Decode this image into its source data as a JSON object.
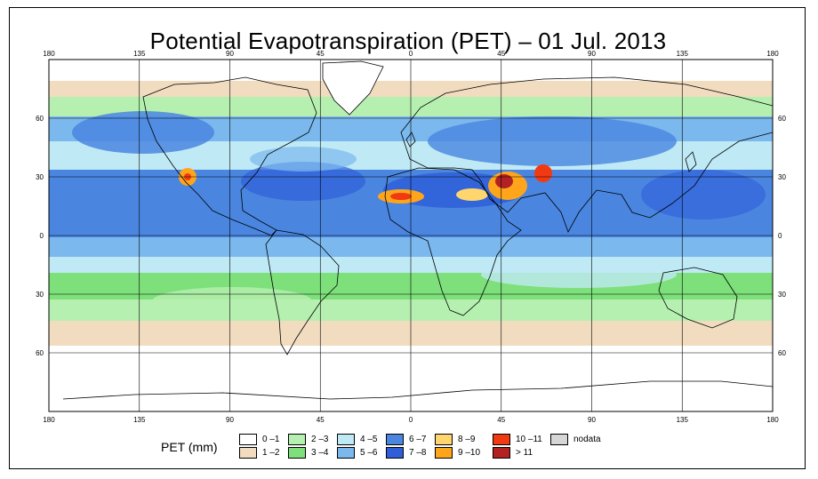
{
  "title": "Potential Evapotranspiration (PET) – 01 Jul. 2013",
  "axes": {
    "lon_labels": [
      "180",
      "135",
      "90",
      "45",
      "0",
      "45",
      "90",
      "135",
      "180"
    ],
    "lat_labels": [
      "60",
      "30",
      "0",
      "30",
      "60"
    ]
  },
  "legend": {
    "title": "PET (mm)",
    "items": [
      {
        "label": "0 –1",
        "color": "#ffffff"
      },
      {
        "label": "1 –2",
        "color": "#f1dcc0"
      },
      {
        "label": "2 –3",
        "color": "#b6f0b0"
      },
      {
        "label": "3 –4",
        "color": "#7de07a"
      },
      {
        "label": "4 –5",
        "color": "#bfeaf5"
      },
      {
        "label": "5 –6",
        "color": "#7ab8ee"
      },
      {
        "label": "6 –7",
        "color": "#4a86e0"
      },
      {
        "label": "7 –8",
        "color": "#2f5fd8"
      },
      {
        "label": "8 –9",
        "color": "#ffd66e"
      },
      {
        "label": "9 –10",
        "color": "#ffa51c"
      },
      {
        "label": "10 –11",
        "color": "#f23a12"
      },
      {
        "label": "> 11",
        "color": "#b32222"
      },
      {
        "label": "nodata",
        "color": "#d6d6d6"
      }
    ]
  },
  "colors": {
    "ocean_tropics": "#4a86e0",
    "land_outline": "#000000",
    "grid": "#000000"
  }
}
